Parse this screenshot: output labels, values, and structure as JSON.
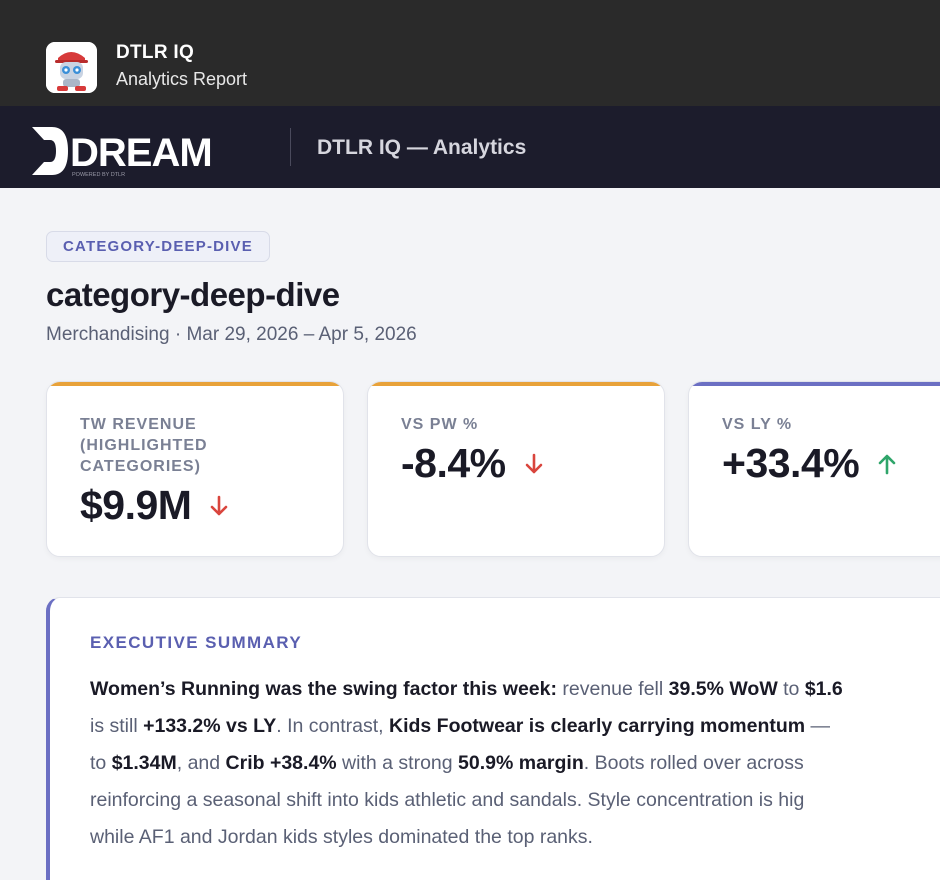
{
  "app": {
    "name": "DTLR IQ",
    "subtitle": "Analytics Report",
    "icon": "robot-mascot-icon"
  },
  "brand": {
    "logo_text": "DREAM",
    "logo_tagline": "POWERED BY DTLR",
    "title": "DTLR IQ — Analytics"
  },
  "report": {
    "tag": "CATEGORY-DEEP-DIVE",
    "title": "category-deep-dive",
    "meta": "Merchandising · Mar 29, 2026 – Apr 5, 2026"
  },
  "kpis": [
    {
      "label": "TW REVENUE (HIGHLIGHTED CATEGORIES)",
      "value": "$9.9M",
      "trend": "down",
      "accent": "#e8a23a"
    },
    {
      "label": "VS PW %",
      "value": "-8.4%",
      "trend": "down",
      "accent": "#e8a23a"
    },
    {
      "label": "VS LY %",
      "value": "+33.4%",
      "trend": "up",
      "accent": "#6b6fc3"
    }
  ],
  "colors": {
    "down": "#d9453d",
    "up": "#2fa56a",
    "accent": "#6b6fc3"
  },
  "summary": {
    "heading": "EXECUTIVE SUMMARY",
    "lines": [
      [
        {
          "b": true,
          "t": "Women’s Running was the swing factor this week:"
        },
        {
          "b": false,
          "t": " revenue fell "
        },
        {
          "b": true,
          "t": "39.5% WoW"
        },
        {
          "b": false,
          "t": " to "
        },
        {
          "b": true,
          "t": "$1.6"
        }
      ],
      [
        {
          "b": false,
          "t": "is still "
        },
        {
          "b": true,
          "t": "+133.2% vs LY"
        },
        {
          "b": false,
          "t": ". In contrast, "
        },
        {
          "b": true,
          "t": "Kids Footwear is clearly carrying momentum"
        },
        {
          "b": false,
          "t": " —"
        }
      ],
      [
        {
          "b": false,
          "t": "to "
        },
        {
          "b": true,
          "t": "$1.34M"
        },
        {
          "b": false,
          "t": ", and "
        },
        {
          "b": true,
          "t": "Crib +38.4%"
        },
        {
          "b": false,
          "t": " with a strong "
        },
        {
          "b": true,
          "t": "50.9% margin"
        },
        {
          "b": false,
          "t": ". Boots rolled over across"
        }
      ],
      [
        {
          "b": false,
          "t": "reinforcing a seasonal shift into kids athletic and sandals. Style concentration is hig"
        }
      ],
      [
        {
          "b": false,
          "t": "while AF1 and Jordan kids styles dominated the top ranks."
        }
      ]
    ]
  }
}
